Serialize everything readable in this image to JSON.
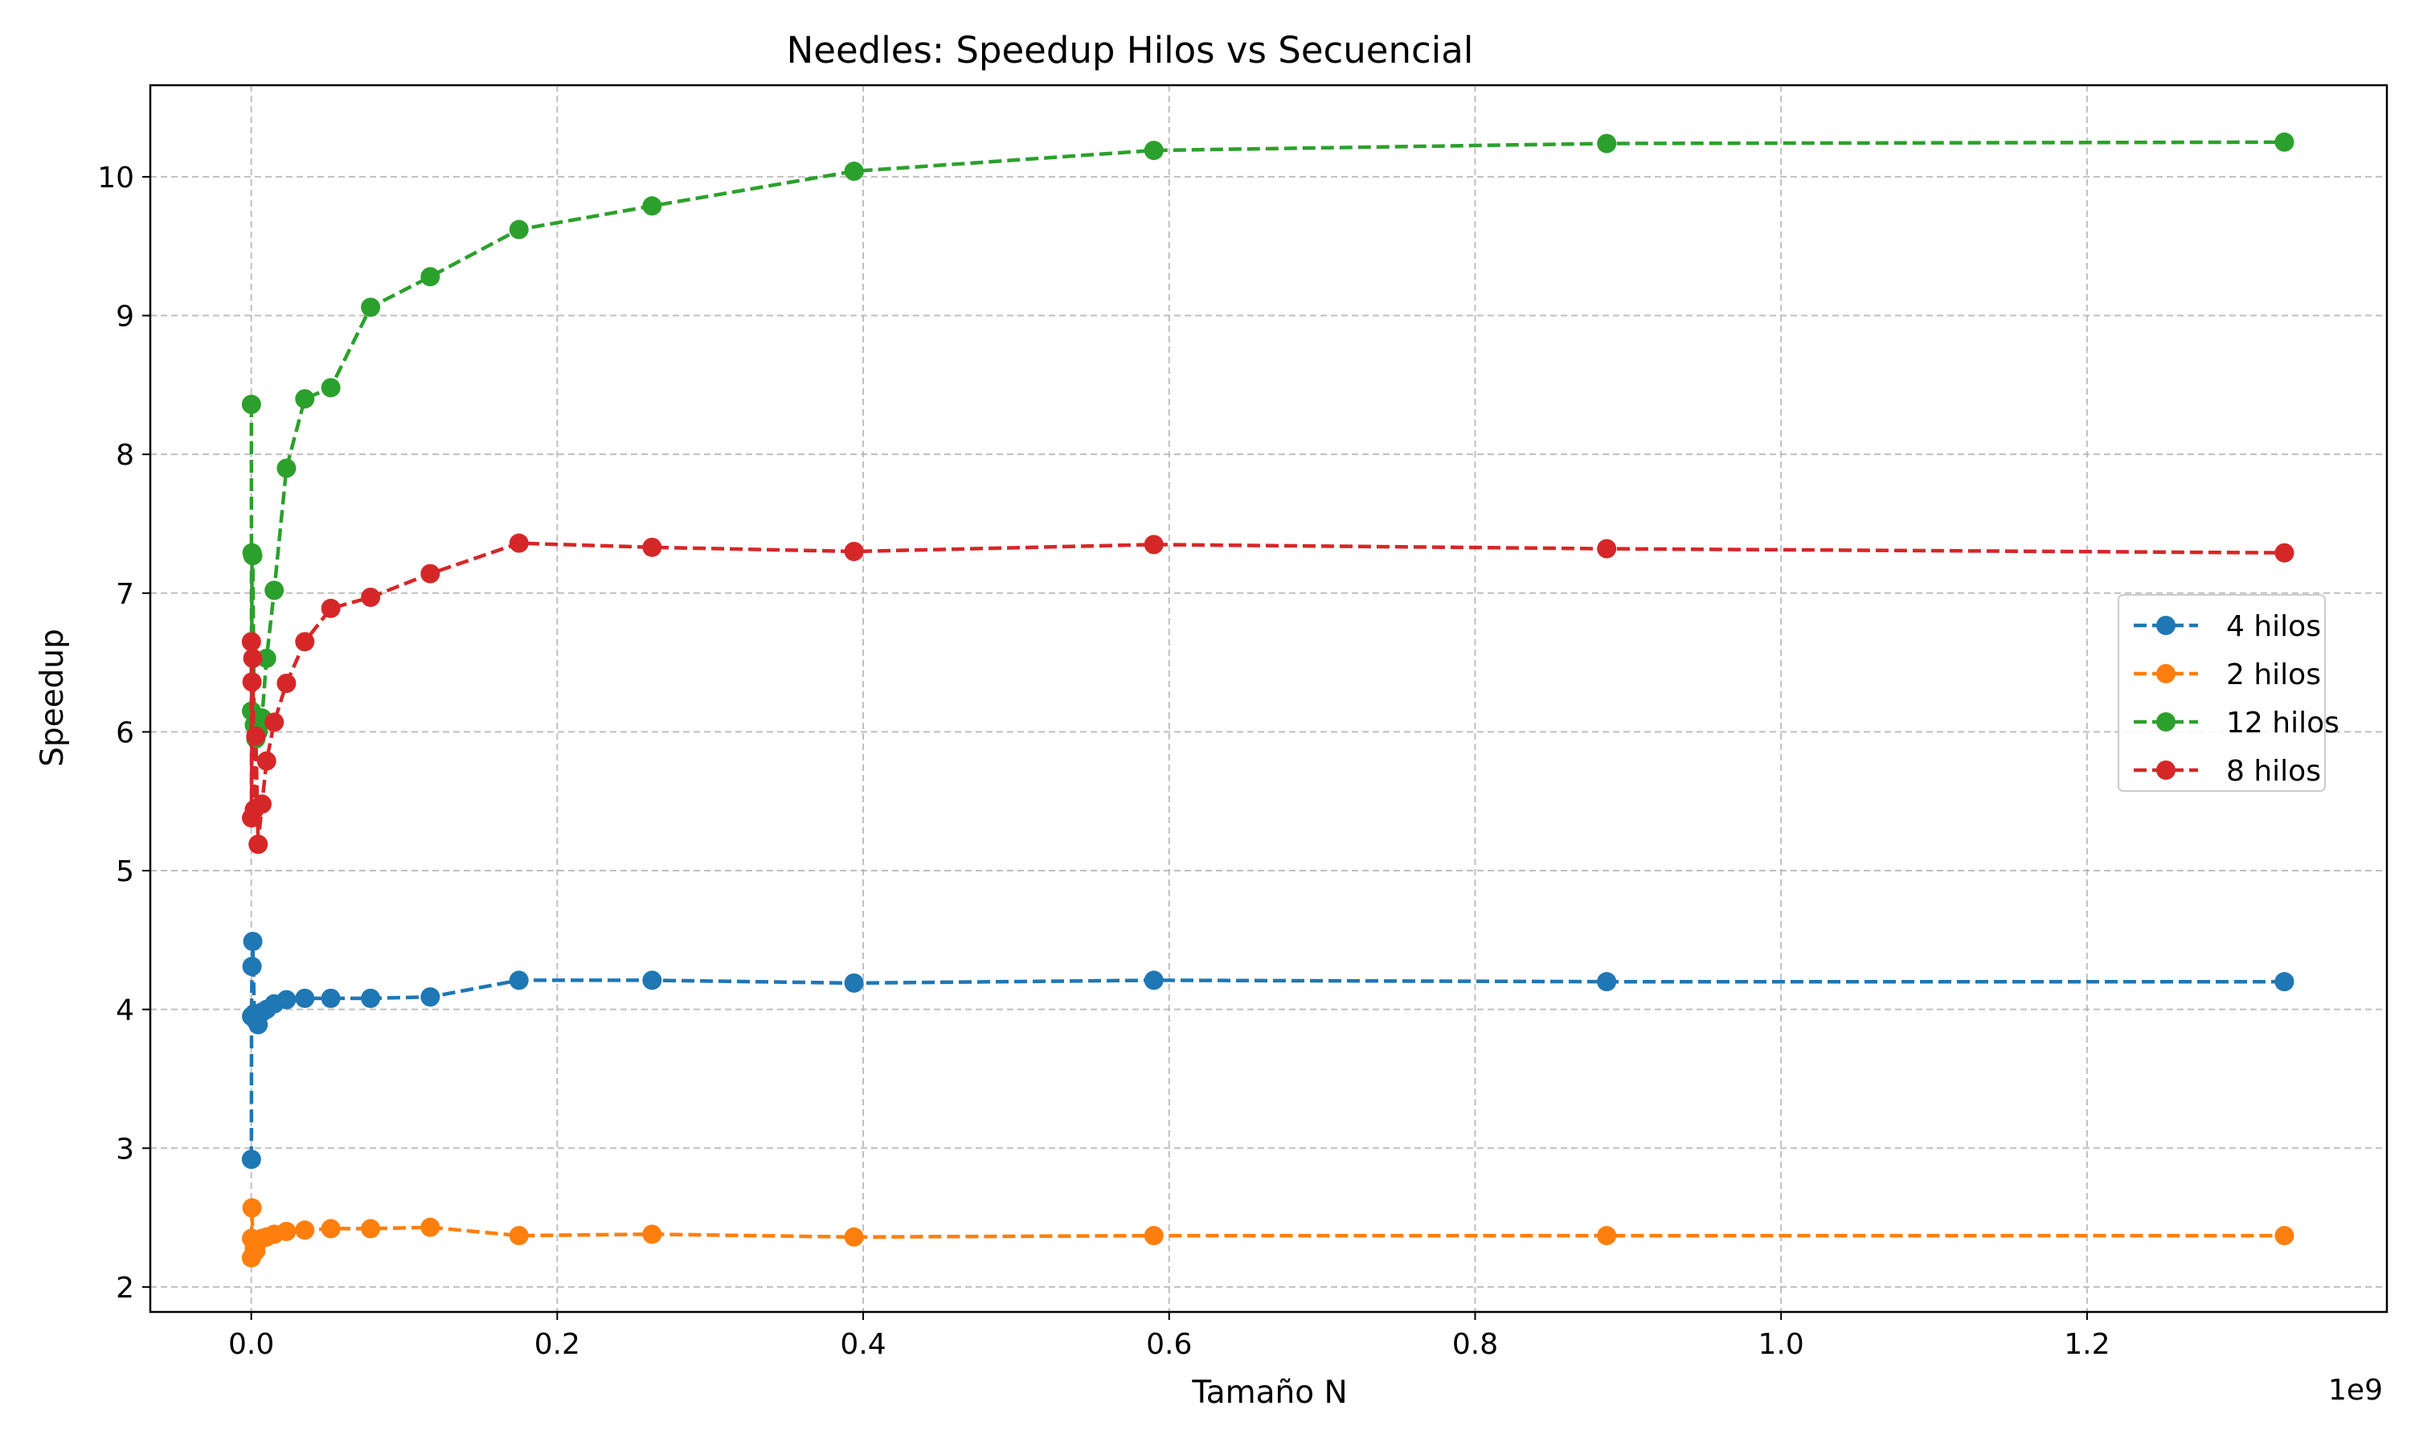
{
  "chart_data": {
    "type": "line",
    "title": "Needles: Speedup Hilos vs Secuencial",
    "xlabel": "Tamaño N",
    "ylabel": "Speedup",
    "x_offset_label": "1e9",
    "xlim": [
      -0.066,
      1.396
    ],
    "ylim": [
      1.82,
      10.66
    ],
    "x_ticks": [
      0.0,
      0.2,
      0.4,
      0.6,
      0.8,
      1.0,
      1.2
    ],
    "x_tick_labels": [
      "0.0",
      "0.2",
      "0.4",
      "0.6",
      "0.8",
      "1.0",
      "1.2"
    ],
    "y_ticks": [
      2,
      3,
      4,
      5,
      6,
      7,
      8,
      9,
      10
    ],
    "y_tick_labels": [
      "2",
      "3",
      "4",
      "5",
      "6",
      "7",
      "8",
      "9",
      "10"
    ],
    "grid": true,
    "legend_position": "center-right",
    "series": [
      {
        "name": "4 hilos",
        "color": "#1f77b4",
        "x": [
          0.0001,
          0.0002,
          0.0005,
          0.001,
          0.002,
          0.003,
          0.0045,
          0.007,
          0.01,
          0.015,
          0.023,
          0.035,
          0.052,
          0.078,
          0.117,
          0.175,
          0.262,
          0.394,
          0.59,
          0.886,
          1.329
        ],
        "y": [
          2.92,
          3.95,
          4.31,
          4.49,
          3.97,
          3.92,
          3.89,
          3.98,
          4.0,
          4.04,
          4.07,
          4.08,
          4.08,
          4.08,
          4.09,
          4.21,
          4.21,
          4.19,
          4.21,
          4.2,
          4.2
        ]
      },
      {
        "name": "2 hilos",
        "color": "#ff7f0e",
        "x": [
          0.0001,
          0.0002,
          0.0005,
          0.001,
          0.002,
          0.003,
          0.0045,
          0.007,
          0.01,
          0.015,
          0.023,
          0.035,
          0.052,
          0.078,
          0.117,
          0.175,
          0.262,
          0.394,
          0.59,
          0.886,
          1.329
        ],
        "y": [
          2.21,
          2.35,
          2.57,
          2.34,
          2.28,
          2.26,
          2.33,
          2.35,
          2.36,
          2.38,
          2.4,
          2.41,
          2.42,
          2.42,
          2.43,
          2.37,
          2.38,
          2.36,
          2.37,
          2.37,
          2.37
        ]
      },
      {
        "name": "12 hilos",
        "color": "#2ca02c",
        "x": [
          0.0001,
          0.0002,
          0.0005,
          0.001,
          0.002,
          0.003,
          0.0045,
          0.007,
          0.01,
          0.015,
          0.023,
          0.035,
          0.052,
          0.078,
          0.117,
          0.175,
          0.262,
          0.394,
          0.59,
          0.886,
          1.329
        ],
        "y": [
          8.36,
          6.15,
          7.29,
          7.27,
          6.05,
          5.95,
          6.0,
          6.1,
          6.53,
          7.02,
          7.9,
          8.4,
          8.48,
          9.06,
          9.28,
          9.62,
          9.79,
          10.04,
          10.19,
          10.24,
          10.25
        ]
      },
      {
        "name": "8 hilos",
        "color": "#d62728",
        "x": [
          0.0001,
          0.0002,
          0.0005,
          0.001,
          0.002,
          0.003,
          0.0045,
          0.007,
          0.01,
          0.015,
          0.023,
          0.035,
          0.052,
          0.078,
          0.117,
          0.175,
          0.262,
          0.394,
          0.59,
          0.886,
          1.329
        ],
        "y": [
          6.65,
          5.38,
          6.36,
          6.53,
          5.44,
          5.97,
          5.19,
          5.48,
          5.79,
          6.07,
          6.35,
          6.65,
          6.89,
          6.97,
          7.14,
          7.36,
          7.33,
          7.3,
          7.35,
          7.32,
          7.29
        ]
      }
    ]
  }
}
